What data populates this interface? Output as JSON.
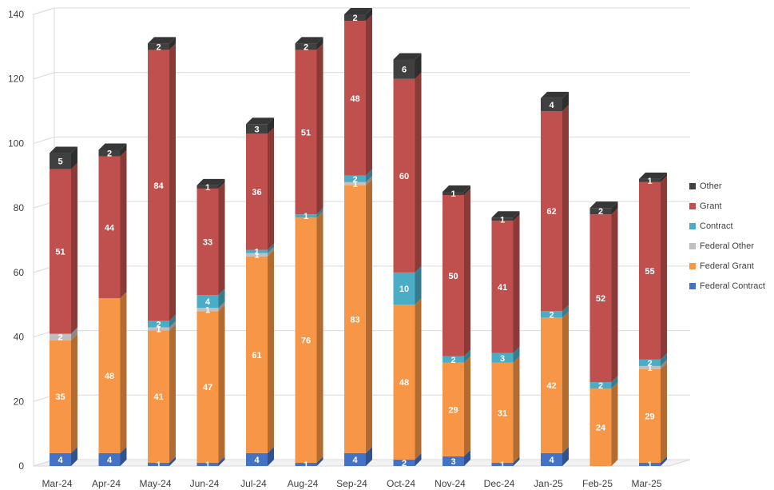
{
  "chart_data": {
    "type": "bar",
    "stacked": true,
    "categories": [
      "Mar-24",
      "Apr-24",
      "May-24",
      "Jun-24",
      "Jul-24",
      "Aug-24",
      "Sep-24",
      "Oct-24",
      "Nov-24",
      "Dec-24",
      "Jan-25",
      "Feb-25",
      "Mar-25"
    ],
    "ylim": [
      0,
      140
    ],
    "yticks": [
      0,
      20,
      40,
      60,
      80,
      100,
      120,
      140
    ],
    "grid": true,
    "legend_position": "right",
    "series": [
      {
        "name": "Federal Contract",
        "color": "#4472C4",
        "values": [
          4,
          4,
          1,
          1,
          4,
          1,
          4,
          2,
          3,
          1,
          4,
          0,
          1
        ]
      },
      {
        "name": "Federal Grant",
        "color": "#F79646",
        "values": [
          35,
          48,
          41,
          47,
          61,
          76,
          83,
          48,
          29,
          31,
          42,
          24,
          29
        ]
      },
      {
        "name": "Federal Other",
        "color": "#BFBFBF",
        "values": [
          2,
          0,
          1,
          1,
          1,
          0,
          1,
          0,
          0,
          0,
          0,
          0,
          1
        ]
      },
      {
        "name": "Contract",
        "color": "#4BACC6",
        "values": [
          0,
          0,
          2,
          4,
          1,
          1,
          2,
          10,
          2,
          3,
          2,
          2,
          2
        ]
      },
      {
        "name": "Grant",
        "color": "#C0504D",
        "values": [
          51,
          44,
          84,
          33,
          36,
          51,
          48,
          60,
          50,
          41,
          62,
          52,
          55
        ]
      },
      {
        "name": "Other",
        "color": "#404040",
        "values": [
          5,
          2,
          2,
          1,
          3,
          2,
          2,
          6,
          1,
          1,
          4,
          2,
          1
        ]
      }
    ]
  }
}
